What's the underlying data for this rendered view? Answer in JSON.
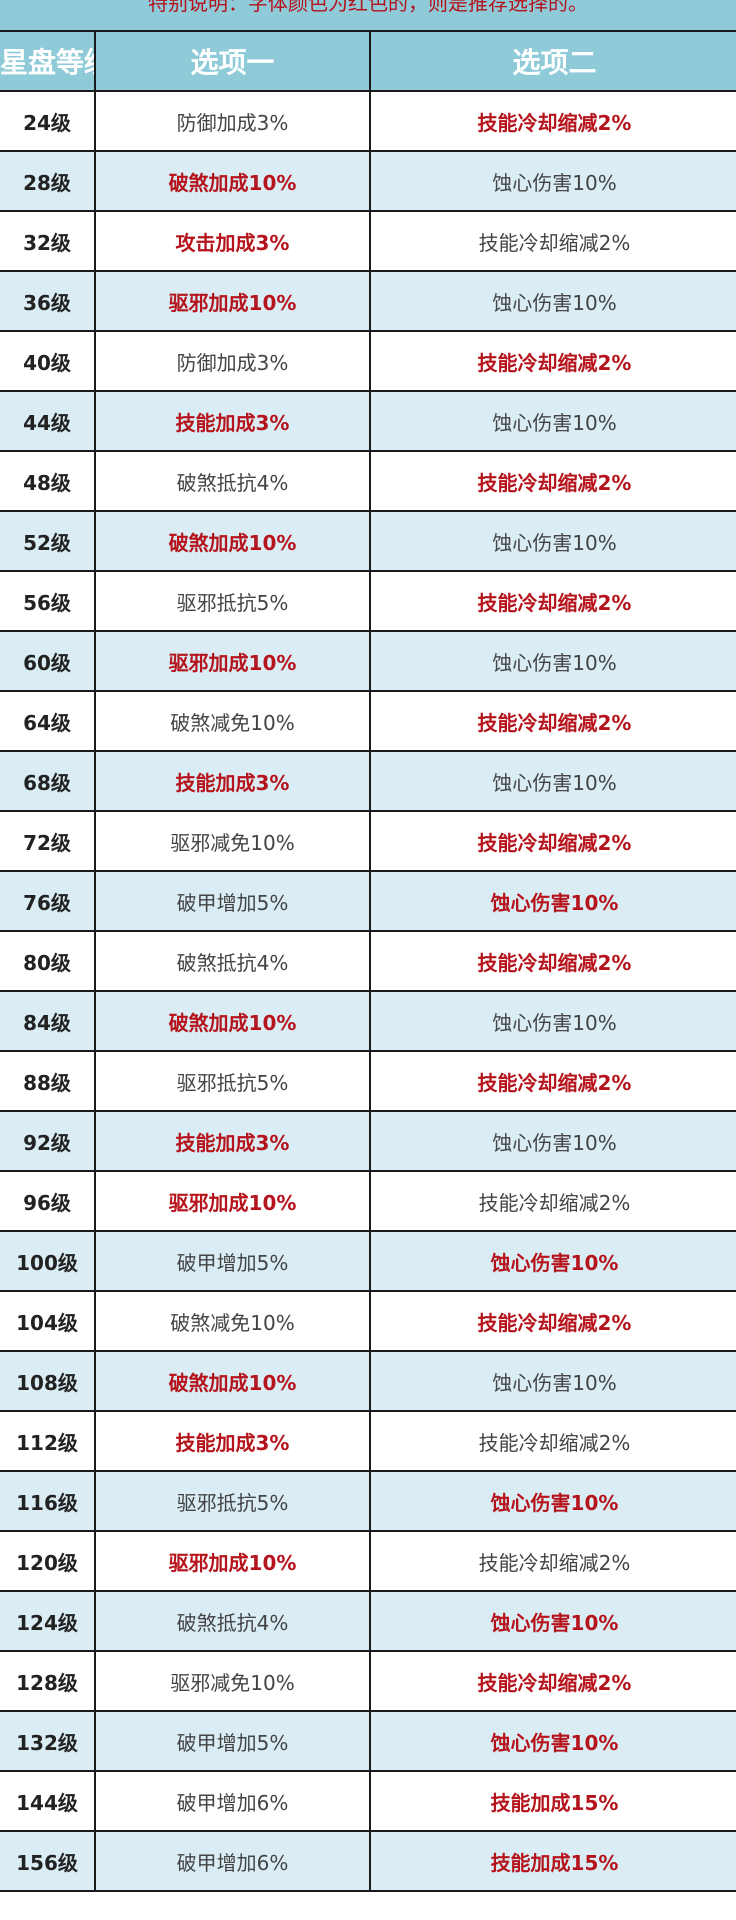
{
  "caption": "特别说明：字体颜色为红色的，则是推荐选择的。",
  "colors": {
    "header_bg": "#8fcad9",
    "alt_row_bg": "#daedf4",
    "recommended_text": "#b5141c"
  },
  "headers": [
    "星盘等级",
    "选项一",
    "选项二"
  ],
  "rows": [
    {
      "level": "24级",
      "opt1": "防御加成3%",
      "opt1_rec": false,
      "opt2": "技能冷却缩减2%",
      "opt2_rec": true
    },
    {
      "level": "28级",
      "opt1": "破煞加成10%",
      "opt1_rec": true,
      "opt2": "蚀心伤害10%",
      "opt2_rec": false
    },
    {
      "level": "32级",
      "opt1": "攻击加成3%",
      "opt1_rec": true,
      "opt2": "技能冷却缩减2%",
      "opt2_rec": false
    },
    {
      "level": "36级",
      "opt1": "驱邪加成10%",
      "opt1_rec": true,
      "opt2": "蚀心伤害10%",
      "opt2_rec": false
    },
    {
      "level": "40级",
      "opt1": "防御加成3%",
      "opt1_rec": false,
      "opt2": "技能冷却缩减2%",
      "opt2_rec": true
    },
    {
      "level": "44级",
      "opt1": "技能加成3%",
      "opt1_rec": true,
      "opt2": "蚀心伤害10%",
      "opt2_rec": false
    },
    {
      "level": "48级",
      "opt1": "破煞抵抗4%",
      "opt1_rec": false,
      "opt2": "技能冷却缩减2%",
      "opt2_rec": true
    },
    {
      "level": "52级",
      "opt1": "破煞加成10%",
      "opt1_rec": true,
      "opt2": "蚀心伤害10%",
      "opt2_rec": false
    },
    {
      "level": "56级",
      "opt1": "驱邪抵抗5%",
      "opt1_rec": false,
      "opt2": "技能冷却缩减2%",
      "opt2_rec": true
    },
    {
      "level": "60级",
      "opt1": "驱邪加成10%",
      "opt1_rec": true,
      "opt2": "蚀心伤害10%",
      "opt2_rec": false
    },
    {
      "level": "64级",
      "opt1": "破煞减免10%",
      "opt1_rec": false,
      "opt2": "技能冷却缩减2%",
      "opt2_rec": true
    },
    {
      "level": "68级",
      "opt1": "技能加成3%",
      "opt1_rec": true,
      "opt2": "蚀心伤害10%",
      "opt2_rec": false
    },
    {
      "level": "72级",
      "opt1": "驱邪减免10%",
      "opt1_rec": false,
      "opt2": "技能冷却缩减2%",
      "opt2_rec": true
    },
    {
      "level": "76级",
      "opt1": "破甲增加5%",
      "opt1_rec": false,
      "opt2": "蚀心伤害10%",
      "opt2_rec": true
    },
    {
      "level": "80级",
      "opt1": "破煞抵抗4%",
      "opt1_rec": false,
      "opt2": "技能冷却缩减2%",
      "opt2_rec": true
    },
    {
      "level": "84级",
      "opt1": "破煞加成10%",
      "opt1_rec": true,
      "opt2": "蚀心伤害10%",
      "opt2_rec": false
    },
    {
      "level": "88级",
      "opt1": "驱邪抵抗5%",
      "opt1_rec": false,
      "opt2": "技能冷却缩减2%",
      "opt2_rec": true
    },
    {
      "level": "92级",
      "opt1": "技能加成3%",
      "opt1_rec": true,
      "opt2": "蚀心伤害10%",
      "opt2_rec": false
    },
    {
      "level": "96级",
      "opt1": "驱邪加成10%",
      "opt1_rec": true,
      "opt2": "技能冷却缩减2%",
      "opt2_rec": false
    },
    {
      "level": "100级",
      "opt1": "破甲增加5%",
      "opt1_rec": false,
      "opt2": "蚀心伤害10%",
      "opt2_rec": true
    },
    {
      "level": "104级",
      "opt1": "破煞减免10%",
      "opt1_rec": false,
      "opt2": "技能冷却缩减2%",
      "opt2_rec": true
    },
    {
      "level": "108级",
      "opt1": "破煞加成10%",
      "opt1_rec": true,
      "opt2": "蚀心伤害10%",
      "opt2_rec": false
    },
    {
      "level": "112级",
      "opt1": "技能加成3%",
      "opt1_rec": true,
      "opt2": "技能冷却缩减2%",
      "opt2_rec": false
    },
    {
      "level": "116级",
      "opt1": "驱邪抵抗5%",
      "opt1_rec": false,
      "opt2": "蚀心伤害10%",
      "opt2_rec": true
    },
    {
      "level": "120级",
      "opt1": "驱邪加成10%",
      "opt1_rec": true,
      "opt2": "技能冷却缩减2%",
      "opt2_rec": false
    },
    {
      "level": "124级",
      "opt1": "破煞抵抗4%",
      "opt1_rec": false,
      "opt2": "蚀心伤害10%",
      "opt2_rec": true
    },
    {
      "level": "128级",
      "opt1": "驱邪减免10%",
      "opt1_rec": false,
      "opt2": "技能冷却缩减2%",
      "opt2_rec": true
    },
    {
      "level": "132级",
      "opt1": "破甲增加5%",
      "opt1_rec": false,
      "opt2": "蚀心伤害10%",
      "opt2_rec": true
    },
    {
      "level": "144级",
      "opt1": "破甲增加6%",
      "opt1_rec": false,
      "opt2": "技能加成15%",
      "opt2_rec": true
    },
    {
      "level": "156级",
      "opt1": "破甲增加6%",
      "opt1_rec": false,
      "opt2": "技能加成15%",
      "opt2_rec": true
    }
  ]
}
